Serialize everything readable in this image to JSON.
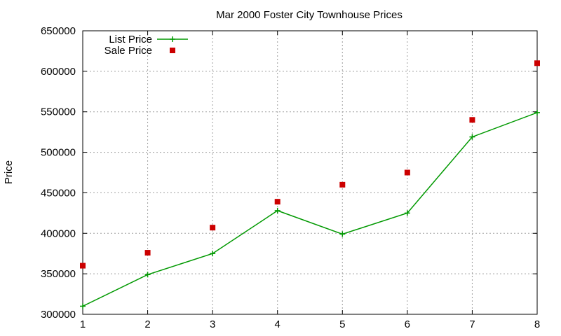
{
  "chart_data": {
    "type": "line",
    "title": "Mar 2000 Foster City Townhouse Prices",
    "xlabel": "",
    "ylabel": "Price",
    "x": [
      1,
      2,
      3,
      4,
      5,
      6,
      7,
      8
    ],
    "xlim": [
      1,
      8
    ],
    "ylim": [
      300000,
      650000
    ],
    "yticks": [
      300000,
      350000,
      400000,
      450000,
      500000,
      550000,
      600000,
      650000
    ],
    "xticks": [
      1,
      2,
      3,
      4,
      5,
      6,
      7,
      8
    ],
    "grid": true,
    "legend_position": "top-left",
    "series": [
      {
        "name": "List Price",
        "style": "linespoints",
        "marker": "plus",
        "color": "#009900",
        "values": [
          310000,
          349000,
          375000,
          428000,
          399000,
          425000,
          519000,
          549000
        ]
      },
      {
        "name": "Sale Price",
        "style": "points",
        "marker": "square",
        "color": "#cc0000",
        "values": [
          360000,
          376000,
          407000,
          439000,
          460000,
          475000,
          540000,
          610000
        ]
      }
    ]
  }
}
